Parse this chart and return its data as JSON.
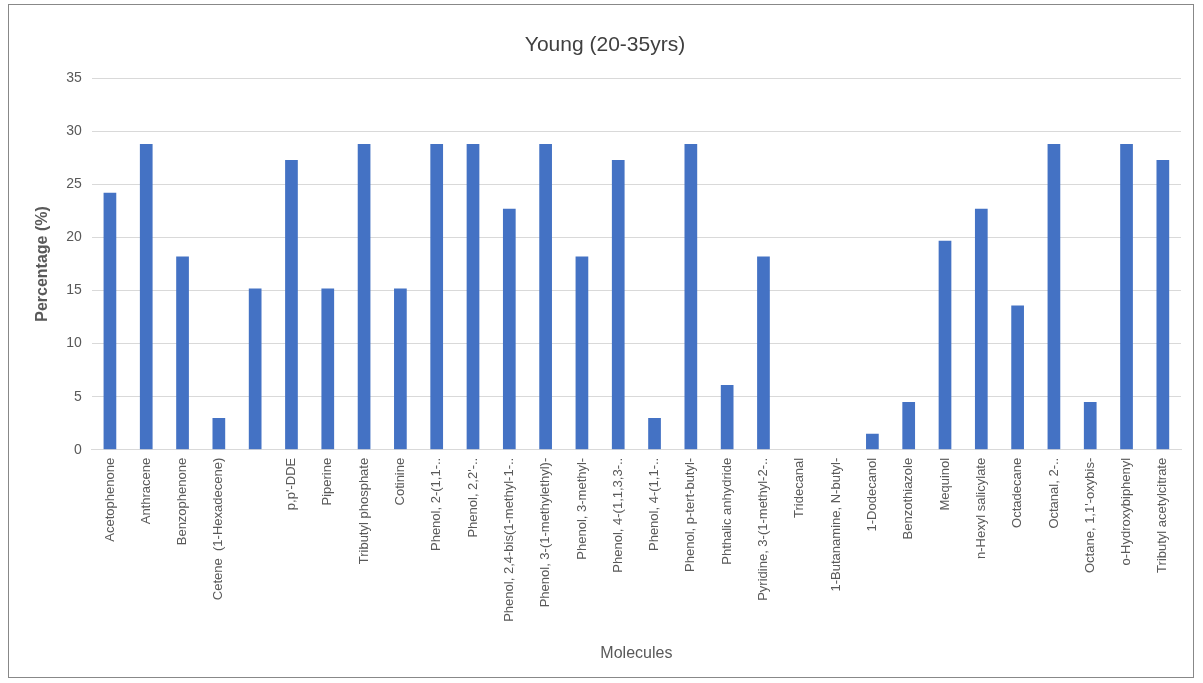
{
  "chart_data": {
    "type": "bar",
    "title": "Young (20-35yrs)",
    "xlabel": "Molecules",
    "ylabel": "Percentage (%)",
    "categories": [
      "Acetophenone",
      "Anthracene",
      "Benzophenone",
      "Cetene  (1-Hexadecene)",
      null,
      "p,p'-DDE",
      "Piperine",
      "Tributyl phosphate",
      "Cotinine",
      "Phenol, 2-(1,1-..",
      "Phenol, 2,2'-..",
      "Phenol, 2,4-bis(1-methyl-1-..",
      "Phenol, 3-(1-methylethyl)-",
      "Phenol, 3-methyl-",
      "Phenol, 4-(1,1,3,3-..",
      "Phenol, 4-(1,1-..",
      "Phenol, p-tert-butyl-",
      "Phthalic anhydride",
      "Pyridine, 3-(1-methyl-2-..",
      "Tridecanal",
      "1-Butanamine, N-butyl-",
      "1-Dodecanol",
      "Benzothiazole",
      "Mequinol",
      "n-Hexyl salicylate",
      "Octadecane",
      "Octanal, 2-..",
      "Octane, 1,1'-oxybis-",
      "o-Hydroxybiphenyl",
      "Tributyl acetylcitrate"
    ],
    "values": [
      24.2,
      28.8,
      18.2,
      3.0,
      15.2,
      27.3,
      15.2,
      28.8,
      15.2,
      28.8,
      28.8,
      22.7,
      28.8,
      18.2,
      27.3,
      3.0,
      28.8,
      6.1,
      18.2,
      0,
      0,
      1.5,
      4.5,
      19.7,
      22.7,
      13.6,
      28.8,
      4.5,
      28.8,
      27.3
    ],
    "color": "#4472c4",
    "ylim": [
      0,
      35
    ],
    "yticks": [
      0,
      5,
      10,
      15,
      20,
      25,
      30,
      35
    ],
    "grid": "y",
    "legend": false
  }
}
